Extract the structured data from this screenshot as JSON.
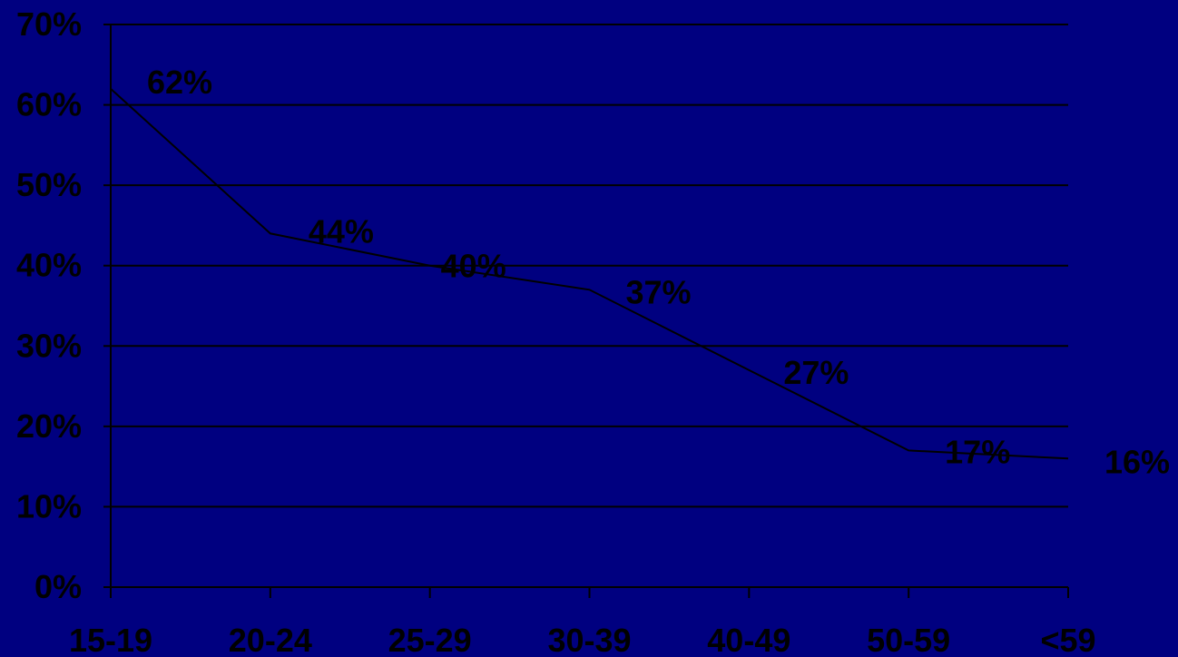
{
  "chart_data": {
    "type": "line",
    "categories": [
      "15-19",
      "20-24",
      "25-29",
      "30-39",
      "40-49",
      "50-59",
      "<59"
    ],
    "values": [
      62,
      44,
      40,
      37,
      27,
      17,
      16
    ],
    "data_labels": [
      "62%",
      "44%",
      "40%",
      "37%",
      "27%",
      "17%",
      "16%"
    ],
    "y_ticks": [
      "0%",
      "10%",
      "20%",
      "30%",
      "40%",
      "50%",
      "60%",
      "70%"
    ],
    "ylim": [
      0,
      70
    ],
    "y_unit": "%",
    "grid": true,
    "title": "",
    "xlabel": "",
    "ylabel": "",
    "colors": {
      "background": "#000080",
      "line": "#000000",
      "gridline": "#000000",
      "text": "#000000"
    }
  }
}
